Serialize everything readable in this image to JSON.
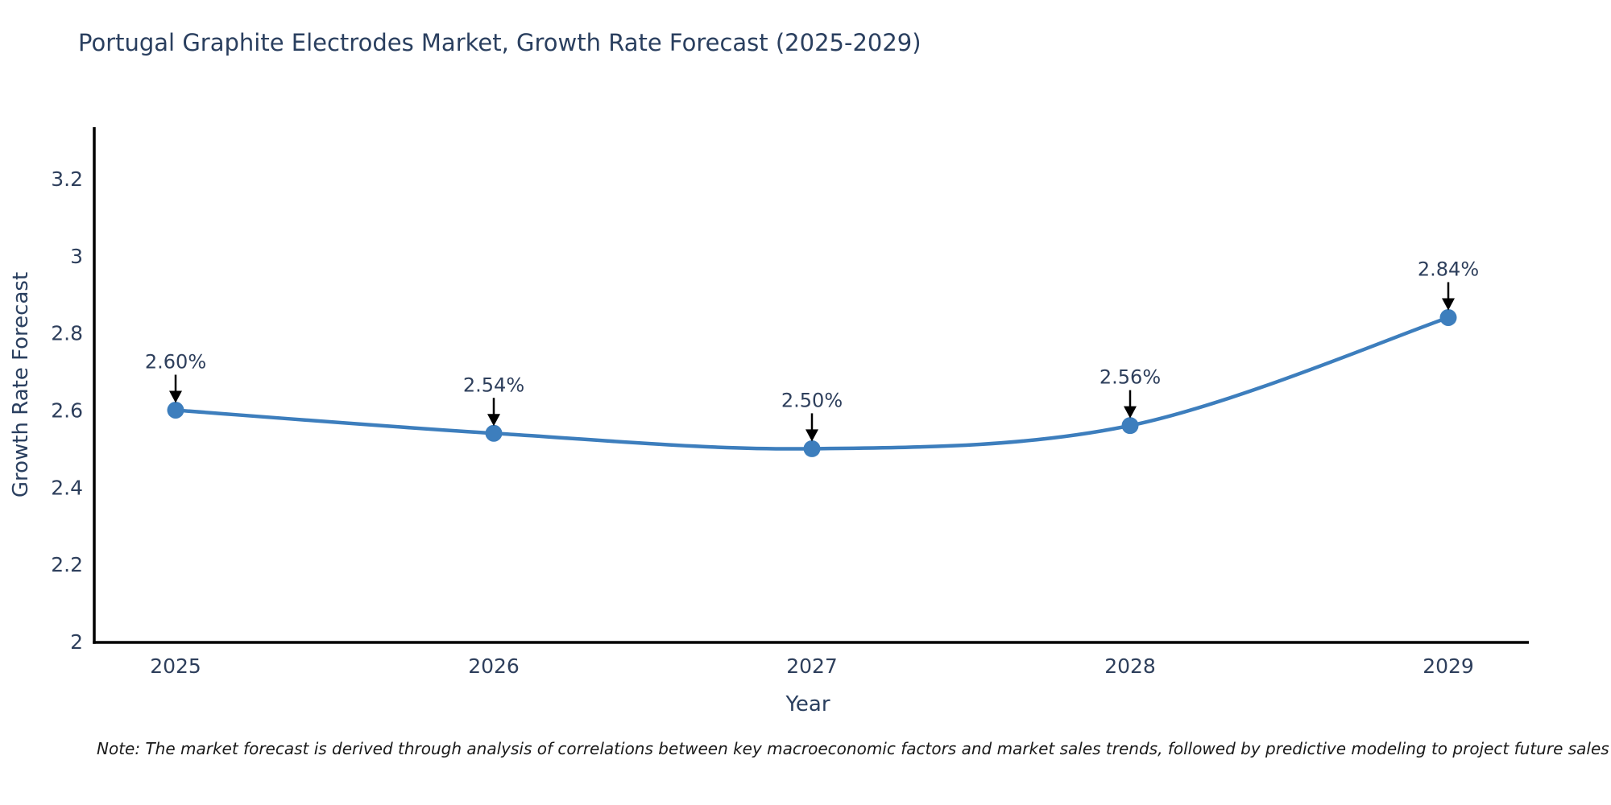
{
  "title": "Portugal Graphite Electrodes Market, Growth Rate Forecast (2025-2029)",
  "note": "Note: The market forecast is derived through analysis of correlations between key macroeconomic factors and market sales trends, followed by predictive modeling to project future sales",
  "chart_data": {
    "type": "line",
    "title": "Portugal Graphite Electrodes Market, Growth Rate Forecast (2025-2029)",
    "xlabel": "Year",
    "ylabel": "Growth Rate Forecast",
    "categories": [
      "2025",
      "2026",
      "2027",
      "2028",
      "2029"
    ],
    "values": [
      2.6,
      2.54,
      2.5,
      2.56,
      2.84
    ],
    "point_labels": [
      "2.60%",
      "2.54%",
      "2.50%",
      "2.56%",
      "2.84%"
    ],
    "yticks": [
      3.2,
      3.0,
      2.8,
      2.6,
      2.4,
      2.2,
      2.0
    ],
    "ylim": [
      2,
      3.324
    ],
    "grid": false,
    "legend_position": "none",
    "line_shape": "spline",
    "annotation_arrows": true,
    "colors": {
      "line": "#3d7ebd",
      "marker": "#3d7ebd",
      "axis": "#000000",
      "tick_text": "#2e3f5c",
      "annotation_text": "#2e3f5c",
      "arrow": "#000000",
      "title_text": "#2a3f5f"
    }
  }
}
